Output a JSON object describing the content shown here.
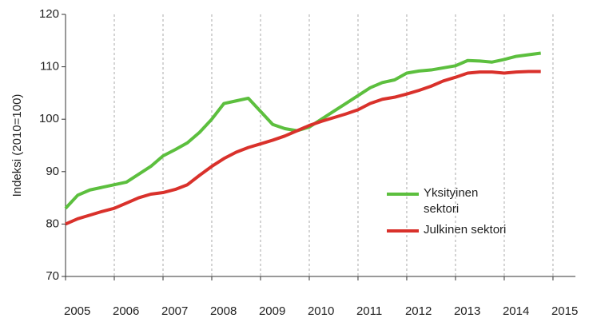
{
  "chart_data": {
    "type": "line",
    "y_label": "Indeksi (2010=100)",
    "x": [
      2005.0,
      2005.25,
      2005.5,
      2005.75,
      2006.0,
      2006.25,
      2006.5,
      2006.75,
      2007.0,
      2007.25,
      2007.5,
      2007.75,
      2008.0,
      2008.25,
      2008.5,
      2008.75,
      2009.0,
      2009.25,
      2009.5,
      2009.75,
      2010.0,
      2010.25,
      2010.5,
      2010.75,
      2011.0,
      2011.25,
      2011.5,
      2011.75,
      2012.0,
      2012.25,
      2012.5,
      2012.75,
      2013.0,
      2013.25,
      2013.5,
      2013.75,
      2014.0,
      2014.25,
      2014.5,
      2014.75
    ],
    "series": [
      {
        "name": "Yksityinen sektori",
        "color": "#5cbf3e",
        "values": [
          83,
          85.5,
          86.5,
          87,
          87.5,
          88,
          89.5,
          91,
          93,
          94.2,
          95.5,
          97.5,
          100,
          103,
          103.5,
          104,
          101.5,
          99,
          98.2,
          97.8,
          98.5,
          100,
          101.5,
          103,
          104.5,
          106,
          107,
          107.5,
          108.8,
          109.2,
          109.4,
          109.8,
          110.2,
          111.2,
          111.1,
          110.9,
          111.4,
          112,
          112.3,
          112.6
        ]
      },
      {
        "name": "Julkinen sektori",
        "color": "#d9312b",
        "values": [
          80,
          81,
          81.7,
          82.4,
          83,
          84,
          85,
          85.7,
          86,
          86.6,
          87.5,
          89.3,
          91,
          92.5,
          93.7,
          94.6,
          95.3,
          96,
          96.8,
          97.8,
          98.8,
          99.6,
          100.3,
          101,
          101.8,
          103,
          103.8,
          104.2,
          104.8,
          105.5,
          106.3,
          107.3,
          108,
          108.8,
          109,
          109,
          108.8,
          109,
          109.1,
          109.1
        ]
      }
    ],
    "xlim": [
      2005,
      2015.46
    ],
    "xticks": [
      2005,
      2006,
      2007,
      2008,
      2009,
      2010,
      2011,
      2012,
      2013,
      2014,
      2015
    ],
    "ylim": [
      70,
      120
    ],
    "yticks": [
      70,
      80,
      90,
      100,
      110,
      120
    ],
    "grid": "x",
    "legend": "lower right"
  }
}
